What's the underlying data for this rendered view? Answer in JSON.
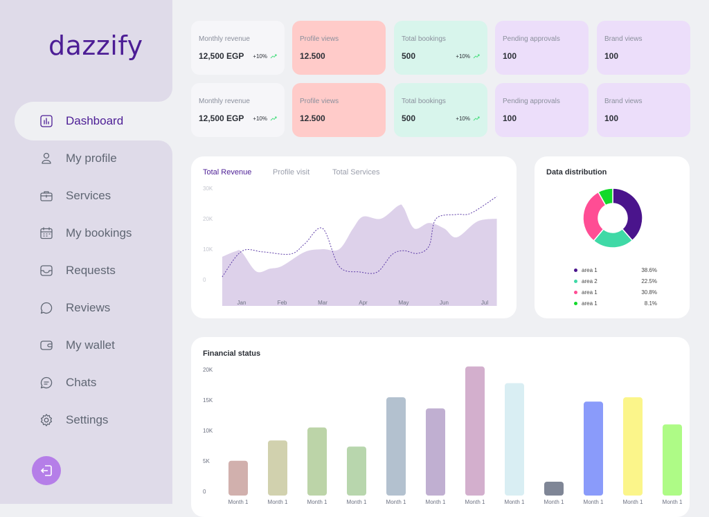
{
  "brand": {
    "logo": "dazzify"
  },
  "sidebar": {
    "items": [
      {
        "label": "Dashboard",
        "icon": "bar-chart-icon",
        "active": true
      },
      {
        "label": "My profile",
        "icon": "user-icon"
      },
      {
        "label": "Services",
        "icon": "briefcase-icon"
      },
      {
        "label": "My bookings",
        "icon": "calendar-icon"
      },
      {
        "label": "Requests",
        "icon": "inbox-icon"
      },
      {
        "label": "Reviews",
        "icon": "chat-bubble-icon"
      },
      {
        "label": "My wallet",
        "icon": "wallet-icon"
      },
      {
        "label": "Chats",
        "icon": "message-icon"
      },
      {
        "label": "Settings",
        "icon": "gear-icon"
      }
    ],
    "logout_icon": "logout-icon",
    "accent": "#4c1d95"
  },
  "cards": [
    {
      "label": "Monthly revenue",
      "value": "12,500 EGP",
      "change": "+10%",
      "bg": "#f6f6f9"
    },
    {
      "label": "Profile views",
      "value": "12.500",
      "change": "",
      "bg": "#ffcbc9"
    },
    {
      "label": "Total bookings",
      "value": "500",
      "change": "+10%",
      "bg": "#d8f5ec"
    },
    {
      "label": "Pending approvals",
      "value": "100",
      "change": "",
      "bg": "#ecdefa"
    },
    {
      "label": "Brand views",
      "value": "100",
      "change": "",
      "bg": "#ecdefa"
    },
    {
      "label": "Monthly revenue",
      "value": "12,500 EGP",
      "change": "+10%",
      "bg": "#f6f6f9"
    },
    {
      "label": "Profile views",
      "value": "12.500",
      "change": "",
      "bg": "#ffcbc9"
    },
    {
      "label": "Total bookings",
      "value": "500",
      "change": "+10%",
      "bg": "#d8f5ec"
    },
    {
      "label": "Pending approvals",
      "value": "100",
      "change": "",
      "bg": "#ecdefa"
    },
    {
      "label": "Brand views",
      "value": "100",
      "change": "",
      "bg": "#ecdefa"
    }
  ],
  "revenue_tabs": [
    "Total Revenue",
    "Profile visit",
    "Total Services"
  ],
  "chart_data": [
    {
      "type": "area",
      "yticks": [
        "30K",
        "20K",
        "10K",
        "0"
      ],
      "ylim": [
        0,
        30000
      ],
      "categories": [
        "Jan",
        "Feb",
        "Mar",
        "Apr",
        "May",
        "Jun",
        "Jul"
      ],
      "series": [
        {
          "style": "area",
          "color": "#ddd1ea",
          "points": [
            [
              -0.48,
              7500
            ],
            [
              -0.15,
              9300
            ],
            [
              0,
              9100
            ],
            [
              0.36,
              2700
            ],
            [
              0.7,
              3600
            ],
            [
              1,
              4500
            ],
            [
              1.56,
              9100
            ],
            [
              2,
              10000
            ],
            [
              2.41,
              10000
            ],
            [
              2.75,
              16800
            ],
            [
              3,
              20700
            ],
            [
              3.44,
              20000
            ],
            [
              3.87,
              24300
            ],
            [
              4,
              23600
            ],
            [
              4.26,
              16800
            ],
            [
              4.63,
              18600
            ],
            [
              5,
              16800
            ],
            [
              5.31,
              13900
            ],
            [
              5.82,
              19100
            ],
            [
              6.3,
              20000
            ]
          ]
        },
        {
          "style": "dotted-line",
          "color": "#5b3aa6",
          "points": [
            [
              -0.48,
              900
            ],
            [
              0,
              9300
            ],
            [
              0.53,
              9100
            ],
            [
              1.21,
              8400
            ],
            [
              1.56,
              11800
            ],
            [
              2,
              16800
            ],
            [
              2.41,
              4300
            ],
            [
              2.92,
              2500
            ],
            [
              3.35,
              2500
            ],
            [
              3.71,
              8200
            ],
            [
              4,
              9500
            ],
            [
              4.34,
              8600
            ],
            [
              4.63,
              11100
            ],
            [
              4.8,
              20000
            ],
            [
              5.31,
              21400
            ],
            [
              5.66,
              21800
            ],
            [
              6.3,
              27300
            ]
          ]
        }
      ]
    },
    {
      "type": "pie",
      "title": "Data distribution",
      "donut": true,
      "slices": [
        {
          "label": "area 1",
          "value": 38.6,
          "display": "38.6%",
          "color": "#4a148c"
        },
        {
          "label": "area 2",
          "value": 22.5,
          "display": "22.5%",
          "color": "#3fd9a6"
        },
        {
          "label": "area 1",
          "value": 30.8,
          "display": "30.8%",
          "color": "#ff4d94"
        },
        {
          "label": "area 1",
          "value": 8.1,
          "display": "8.1%",
          "color": "#12d92a"
        }
      ]
    },
    {
      "type": "bar",
      "title": "Financial status",
      "yticks": [
        "20K",
        "15K",
        "10K",
        "5K",
        "0"
      ],
      "ylim": [
        0,
        20000
      ],
      "categories": [
        "Month 1",
        "Month 1",
        "Month 1",
        "Month 1",
        "Month 1",
        "Month 1",
        "Month 1",
        "Month 1",
        "Month 1",
        "Month 1",
        "Month 1",
        "Month 1"
      ],
      "values": [
        5200,
        8500,
        10600,
        7500,
        15500,
        13700,
        20500,
        17800,
        1800,
        14800,
        15500,
        11100
      ],
      "colors": [
        "#d1b0ad",
        "#d1d1ae",
        "#bcd4a8",
        "#b8d6ad",
        "#b3c1cf",
        "#c0afd1",
        "#d3afcd",
        "#d9eef3",
        "#7f8696",
        "#8a9bfa",
        "#fbf58a",
        "#aefb86"
      ]
    }
  ]
}
